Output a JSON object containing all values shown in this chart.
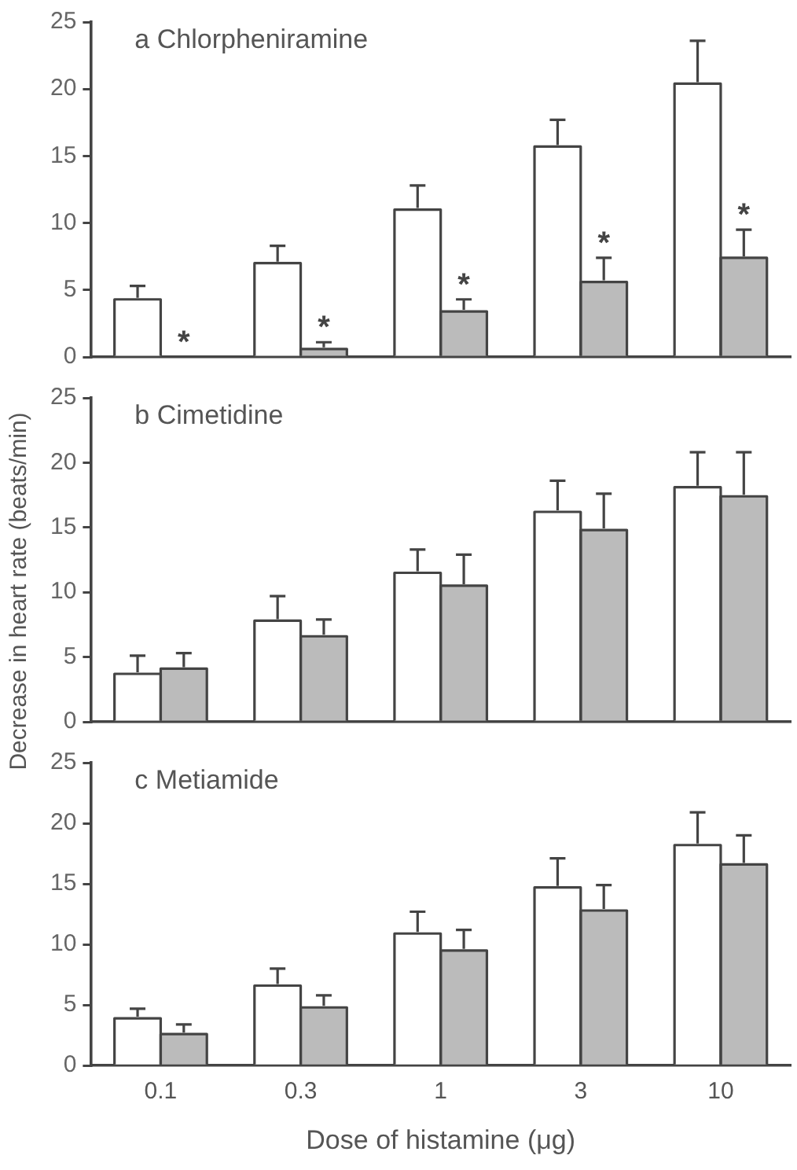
{
  "chart_data": [
    {
      "type": "bar",
      "title": "a Chlorpheniramine",
      "categories": [
        "0.1",
        "0.3",
        "1",
        "3",
        "10"
      ],
      "ylim": [
        0,
        25
      ],
      "yticks": [
        0,
        5,
        10,
        15,
        20,
        25
      ],
      "tick_labels": "y",
      "grid": false,
      "legend": false,
      "series": [
        {
          "color": "#ffffff",
          "values": [
            4.3,
            7.0,
            11.0,
            15.7,
            20.4
          ],
          "errors": [
            [
              4.3,
              5.3
            ],
            [
              7.0,
              8.3
            ],
            [
              11.0,
              12.8
            ],
            [
              15.7,
              17.7
            ],
            [
              20.4,
              23.6
            ]
          ]
        },
        {
          "color": "#bbbbbb",
          "values": [
            0,
            0.6,
            3.4,
            5.6,
            7.4
          ],
          "errors": [
            null,
            [
              0.6,
              1.1
            ],
            [
              3.4,
              4.3
            ],
            [
              5.6,
              7.4
            ],
            [
              7.4,
              9.5
            ]
          ],
          "value_labels": [
            "*",
            "*",
            "*",
            "*",
            "*"
          ]
        }
      ]
    },
    {
      "type": "bar",
      "title": "b Cimetidine",
      "ylabel": "Decrease in heart rate  (beats/min)",
      "categories": [
        "0.1",
        "0.3",
        "1",
        "3",
        "10"
      ],
      "ylim": [
        0,
        25
      ],
      "yticks": [
        0,
        5,
        10,
        15,
        20,
        25
      ],
      "tick_labels": "y",
      "grid": false,
      "legend": false,
      "series": [
        {
          "color": "#ffffff",
          "values": [
            3.7,
            7.8,
            11.5,
            16.2,
            18.1
          ],
          "errors": [
            [
              3.7,
              5.1
            ],
            [
              7.8,
              9.7
            ],
            [
              11.5,
              13.3
            ],
            [
              16.2,
              18.6
            ],
            [
              18.1,
              20.8
            ]
          ]
        },
        {
          "color": "#bbbbbb",
          "values": [
            4.1,
            6.6,
            10.5,
            14.8,
            17.4
          ],
          "errors": [
            [
              4.1,
              5.3
            ],
            [
              6.6,
              7.9
            ],
            [
              10.5,
              12.9
            ],
            [
              14.8,
              17.6
            ],
            [
              17.4,
              20.8
            ]
          ]
        }
      ]
    },
    {
      "type": "bar",
      "title": "c Metiamide",
      "xlabel": "Dose of histamine (μg)",
      "categories": [
        "0.1",
        "0.3",
        "1",
        "3",
        "10"
      ],
      "ylim": [
        0,
        25
      ],
      "yticks": [
        0,
        5,
        10,
        15,
        20,
        25
      ],
      "grid": false,
      "legend": false,
      "series": [
        {
          "color": "#ffffff",
          "values": [
            3.9,
            6.6,
            10.9,
            14.7,
            18.2
          ],
          "errors": [
            [
              3.9,
              4.7
            ],
            [
              6.6,
              8.0
            ],
            [
              10.9,
              12.7
            ],
            [
              14.7,
              17.1
            ],
            [
              18.2,
              20.9
            ]
          ]
        },
        {
          "color": "#bbbbbb",
          "values": [
            2.6,
            4.8,
            9.5,
            12.8,
            16.6
          ],
          "errors": [
            [
              2.6,
              3.4
            ],
            [
              4.8,
              5.8
            ],
            [
              9.5,
              11.2
            ],
            [
              12.8,
              14.9
            ],
            [
              16.6,
              19.0
            ]
          ]
        }
      ]
    }
  ]
}
